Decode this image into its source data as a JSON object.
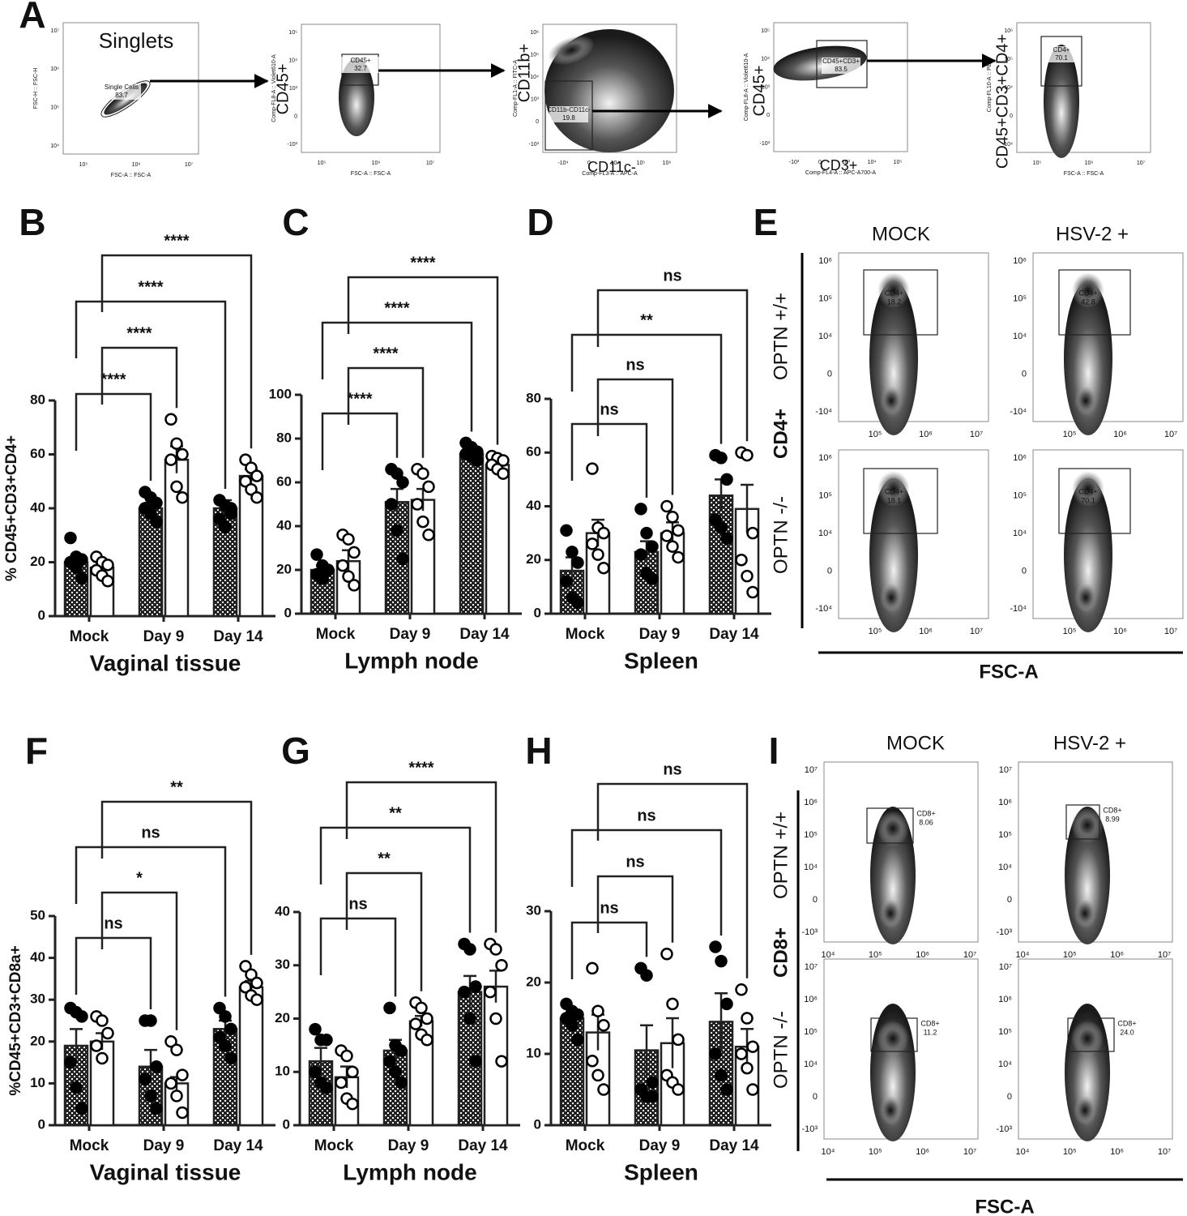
{
  "chart_data": [
    {
      "type": "bar",
      "panel": "B",
      "xlabel": "Vaginal tissue",
      "ylabel": "% CD45+CD3+CD4+",
      "categories": [
        "Mock",
        "Day 9",
        "Day 14"
      ],
      "ylim": [
        0,
        80
      ],
      "yticks": [
        0,
        20,
        40,
        60,
        80
      ],
      "series": [
        {
          "color": "#222222",
          "values": [
            20,
            40,
            40
          ],
          "errors": [
            1.5,
            2,
            3
          ],
          "points": [
            [
              29,
              22,
              21,
              20,
              18,
              14
            ],
            [
              46,
              44,
              42,
              40,
              38,
              35
            ],
            [
              43,
              41,
              38,
              36,
              33,
              40
            ]
          ]
        },
        {
          "color": "#ffffff",
          "values": [
            18,
            58,
            52
          ],
          "errors": [
            1.5,
            5,
            2.5
          ],
          "points": [
            [
              22,
              20,
              19,
              17,
              15,
              13
            ],
            [
              73,
              64,
              60,
              58,
              48,
              44
            ],
            [
              58,
              55,
              52,
              50,
              47,
              44
            ]
          ]
        }
      ],
      "comparisons": [
        {
          "label": "****",
          "from": [
            0,
            0
          ],
          "to": [
            1,
            0
          ]
        },
        {
          "label": "****",
          "from": [
            0,
            1
          ],
          "to": [
            1,
            1
          ]
        },
        {
          "label": "****",
          "from": [
            0,
            0
          ],
          "to": [
            2,
            0
          ]
        },
        {
          "label": "****",
          "from": [
            0,
            1
          ],
          "to": [
            2,
            1
          ]
        }
      ]
    },
    {
      "type": "bar",
      "panel": "C",
      "xlabel": "Lymph node",
      "categories": [
        "Mock",
        "Day 9",
        "Day 14"
      ],
      "ylim": [
        0,
        100
      ],
      "yticks": [
        0,
        20,
        40,
        60,
        80,
        100
      ],
      "series": [
        {
          "color": "#222222",
          "values": [
            20,
            51,
            73
          ],
          "errors": [
            2,
            6,
            2
          ],
          "points": [
            [
              27,
              22,
              20,
              18,
              16
            ],
            [
              66,
              64,
              60,
              50,
              38,
              25
            ],
            [
              78,
              76,
              74,
              73,
              72,
              70
            ]
          ]
        },
        {
          "color": "#ffffff",
          "values": [
            24,
            52,
            68
          ],
          "errors": [
            5,
            5,
            2
          ],
          "points": [
            [
              36,
              34,
              28,
              22,
              17,
              13
            ],
            [
              66,
              64,
              58,
              50,
              42,
              36
            ],
            [
              72,
              71,
              70,
              68,
              66,
              64
            ]
          ]
        }
      ],
      "comparisons": [
        {
          "label": "****",
          "from": [
            0,
            0
          ],
          "to": [
            1,
            0
          ]
        },
        {
          "label": "****",
          "from": [
            0,
            1
          ],
          "to": [
            1,
            1
          ]
        },
        {
          "label": "****",
          "from": [
            0,
            0
          ],
          "to": [
            2,
            0
          ]
        },
        {
          "label": "****",
          "from": [
            0,
            1
          ],
          "to": [
            2,
            1
          ]
        }
      ]
    },
    {
      "type": "bar",
      "panel": "D",
      "xlabel": "Spleen",
      "categories": [
        "Mock",
        "Day 9",
        "Day 14"
      ],
      "ylim": [
        0,
        80
      ],
      "yticks": [
        0,
        20,
        40,
        60,
        80
      ],
      "series": [
        {
          "color": "#222222",
          "values": [
            16,
            23,
            44
          ],
          "errors": [
            5,
            4,
            6
          ],
          "points": [
            [
              31,
              23,
              19,
              12,
              6,
              4
            ],
            [
              39,
              30,
              25,
              22,
              15,
              13
            ],
            [
              59,
              58,
              50,
              35,
              32,
              28
            ]
          ]
        },
        {
          "color": "#ffffff",
          "values": [
            30,
            30,
            39
          ],
          "errors": [
            5,
            4,
            9
          ],
          "points": [
            [
              54,
              32,
              30,
              26,
              22,
              17
            ],
            [
              40,
              36,
              31,
              29,
              25,
              21
            ],
            [
              60,
              59,
              30,
              20,
              14,
              8
            ]
          ]
        }
      ],
      "comparisons": [
        {
          "label": "ns",
          "from": [
            0,
            0
          ],
          "to": [
            1,
            0
          ]
        },
        {
          "label": "ns",
          "from": [
            0,
            1
          ],
          "to": [
            1,
            1
          ]
        },
        {
          "label": "**",
          "from": [
            0,
            0
          ],
          "to": [
            2,
            0
          ]
        },
        {
          "label": "ns",
          "from": [
            0,
            1
          ],
          "to": [
            2,
            1
          ]
        }
      ]
    },
    {
      "type": "bar",
      "panel": "F",
      "xlabel": "Vaginal tissue",
      "ylabel": "%CD45+CD3+CD8a+",
      "categories": [
        "Mock",
        "Day 9",
        "Day 14"
      ],
      "ylim": [
        0,
        50
      ],
      "yticks": [
        0,
        10,
        20,
        30,
        40,
        50
      ],
      "series": [
        {
          "color": "#222222",
          "values": [
            19,
            14,
            23
          ],
          "errors": [
            4,
            4,
            2
          ],
          "points": [
            [
              28,
              27,
              26,
              15,
              9,
              4
            ],
            [
              25,
              25,
              14,
              11,
              7,
              4
            ],
            [
              28,
              26,
              23,
              21,
              19,
              16
            ]
          ]
        },
        {
          "color": "#ffffff",
          "values": [
            20,
            10,
            33
          ],
          "errors": [
            2,
            1.5,
            1.5
          ],
          "points": [
            [
              26,
              25,
              22,
              19,
              16
            ],
            [
              20,
              18,
              12,
              10,
              7,
              3
            ],
            [
              38,
              36,
              34,
              33,
              31,
              30
            ]
          ]
        }
      ],
      "comparisons": [
        {
          "label": "ns",
          "from": [
            0,
            0
          ],
          "to": [
            1,
            0
          ]
        },
        {
          "label": "*",
          "from": [
            0,
            1
          ],
          "to": [
            1,
            1
          ]
        },
        {
          "label": "ns",
          "from": [
            0,
            0
          ],
          "to": [
            2,
            0
          ]
        },
        {
          "label": "**",
          "from": [
            0,
            1
          ],
          "to": [
            2,
            1
          ]
        }
      ]
    },
    {
      "type": "bar",
      "panel": "G",
      "xlabel": "Lymph node",
      "categories": [
        "Mock",
        "Day 9",
        "Day 14"
      ],
      "ylim": [
        0,
        40
      ],
      "yticks": [
        0,
        10,
        20,
        30,
        40
      ],
      "series": [
        {
          "color": "#222222",
          "values": [
            12,
            14,
            25
          ],
          "errors": [
            2.5,
            2,
            3
          ],
          "points": [
            [
              18,
              16,
              16,
              10,
              8,
              7
            ],
            [
              22,
              15,
              14,
              12,
              10,
              8
            ],
            [
              34,
              33,
              26,
              25,
              20,
              12
            ]
          ]
        },
        {
          "color": "#ffffff",
          "values": [
            9,
            19.5,
            26
          ],
          "errors": [
            2,
            1,
            3
          ],
          "points": [
            [
              14,
              13,
              10,
              8,
              5,
              4
            ],
            [
              23,
              22,
              20,
              19,
              17,
              16
            ],
            [
              34,
              33,
              30,
              25,
              20,
              12
            ]
          ]
        }
      ],
      "comparisons": [
        {
          "label": "ns",
          "from": [
            0,
            0
          ],
          "to": [
            1,
            0
          ]
        },
        {
          "label": "**",
          "from": [
            0,
            1
          ],
          "to": [
            1,
            1
          ]
        },
        {
          "label": "**",
          "from": [
            0,
            0
          ],
          "to": [
            2,
            0
          ]
        },
        {
          "label": "****",
          "from": [
            0,
            1
          ],
          "to": [
            2,
            1
          ]
        }
      ]
    },
    {
      "type": "bar",
      "panel": "H",
      "xlabel": "Spleen",
      "categories": [
        "Mock",
        "Day 9",
        "Day 14"
      ],
      "ylim": [
        0,
        30
      ],
      "yticks": [
        0,
        10,
        20,
        30
      ],
      "series": [
        {
          "color": "#222222",
          "values": [
            15,
            10.5,
            14.5
          ],
          "errors": [
            0.8,
            3.5,
            4
          ],
          "points": [
            [
              17,
              16,
              15.5,
              15,
              14,
              12
            ],
            [
              22,
              21,
              6,
              5,
              4,
              4
            ],
            [
              25,
              23,
              17,
              10,
              7,
              5
            ]
          ]
        },
        {
          "color": "#ffffff",
          "values": [
            13,
            11.5,
            11
          ],
          "errors": [
            2.5,
            3.5,
            2.5
          ],
          "points": [
            [
              22,
              16,
              14,
              9,
              7,
              5
            ],
            [
              24,
              17,
              12,
              7,
              6,
              5
            ],
            [
              19,
              15,
              11,
              10,
              8,
              5
            ]
          ]
        }
      ],
      "comparisons": [
        {
          "label": "ns",
          "from": [
            0,
            0
          ],
          "to": [
            1,
            0
          ]
        },
        {
          "label": "ns",
          "from": [
            0,
            1
          ],
          "to": [
            1,
            1
          ]
        },
        {
          "label": "ns",
          "from": [
            0,
            0
          ],
          "to": [
            2,
            0
          ]
        },
        {
          "label": "ns",
          "from": [
            0,
            1
          ],
          "to": [
            2,
            1
          ]
        }
      ]
    }
  ],
  "gating": {
    "panel": "A",
    "plots": [
      {
        "title": "Singlets",
        "x_title": "FSC-A :: FSC-A",
        "y_title": "FSC-H :: FSC-H",
        "x_ticks": [
          "10⁵",
          "10⁶",
          "10⁷"
        ],
        "y_ticks": [
          "10⁷",
          "10⁶",
          "10⁵",
          "10⁴"
        ],
        "gate": {
          "name": "Single Cells",
          "percent": "83.7"
        }
      },
      {
        "y_marker": "CD45+",
        "x_title": "FSC-A :: FSC-A",
        "y_title": "Comp-FL8-A :: Violet610-A",
        "x_ticks": [
          "10⁵",
          "10⁶",
          "10⁷"
        ],
        "y_ticks": [
          "10⁵",
          "10⁴",
          "10³",
          "0",
          "-10³"
        ],
        "gate": {
          "name": "CD45+",
          "percent": "32.7"
        }
      },
      {
        "y_marker": "CD11b+",
        "x_marker": "CD11c-",
        "x_title": "Comp-FL3-A :: APC-A",
        "y_title": "Comp-FL1-A :: FITC-A",
        "x_ticks": [
          "-10⁴",
          "0",
          "10⁴",
          "10⁵",
          "10⁶"
        ],
        "y_ticks": [
          "10⁶",
          "10⁵",
          "10⁴",
          "10³",
          "0",
          "-10³"
        ],
        "gate": {
          "name": "CD11b-CD11c-",
          "percent": "19.8"
        }
      },
      {
        "y_marker": "CD45+",
        "x_marker": "CD3+",
        "x_title": "Comp-FL4-A :: APC-A700-A",
        "y_title": "Comp-FL8-A :: Violet610-A",
        "x_ticks": [
          "-10³",
          "0",
          "10³",
          "10⁴",
          "10⁵"
        ],
        "y_ticks": [
          "10⁵",
          "10⁴",
          "10³",
          "0",
          "-10³"
        ],
        "gate": {
          "name": "CD45+CD3+",
          "percent": "83.5"
        }
      },
      {
        "y_marker": "CD45+CD3+CD4+",
        "x_title": "FSC-A :: FSC-A",
        "y_title": "Comp-FL10-A :: PE",
        "x_ticks": [
          "10⁵",
          "10⁶",
          "10⁷"
        ],
        "y_ticks": [
          "10⁶",
          "10⁵",
          "10⁴",
          "0",
          "-10⁴"
        ],
        "gate": {
          "name": "CD4+",
          "percent": "70.1"
        }
      }
    ]
  },
  "cd4_panel": {
    "panel": "E",
    "columns": [
      "MOCK",
      "HSV-2 +"
    ],
    "rows": [
      "OPTN +/+",
      "OPTN -/-"
    ],
    "marker": "CD4+",
    "x_title": "FSC-A",
    "x_ticks": [
      "10⁵",
      "10⁶",
      "10⁷"
    ],
    "y_ticks": [
      "10⁶",
      "10⁵",
      "10⁴",
      "0",
      "-10⁴"
    ],
    "plots": [
      {
        "gate": {
          "name": "CD4+",
          "percent": "18.2"
        }
      },
      {
        "gate": {
          "name": "CD4+",
          "percent": "42.8"
        }
      },
      {
        "gate": {
          "name": "CD4+",
          "percent": "18.1"
        }
      },
      {
        "gate": {
          "name": "CD4+",
          "percent": "70.1"
        }
      }
    ]
  },
  "cd8_panel": {
    "panel": "I",
    "columns": [
      "MOCK",
      "HSV-2 +"
    ],
    "rows": [
      "OPTN +/+",
      "OPTN -/-"
    ],
    "marker": "CD8+",
    "x_title": "FSC-A",
    "x_ticks": [
      "10⁴",
      "10⁵",
      "10⁶",
      "10⁷"
    ],
    "y_ticks": [
      "10⁷",
      "10⁶",
      "10⁵",
      "10⁴",
      "0",
      "-10³"
    ],
    "plots": [
      {
        "gate": {
          "name": "CD8+",
          "percent": "8.06"
        }
      },
      {
        "gate": {
          "name": "CD8+",
          "percent": "8.99"
        }
      },
      {
        "gate": {
          "name": "CD8+",
          "percent": "11.2"
        }
      },
      {
        "gate": {
          "name": "CD8+",
          "percent": "24.0"
        }
      }
    ]
  }
}
